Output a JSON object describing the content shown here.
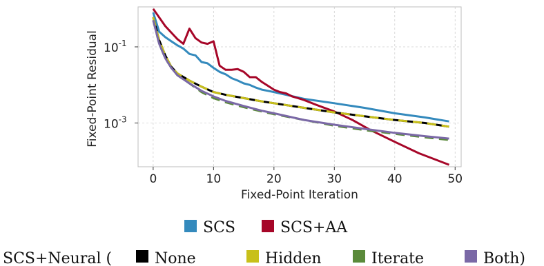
{
  "chart_data": {
    "type": "line",
    "title": "",
    "xlabel": "Fixed-Point Iteration",
    "ylabel": "Fixed-Point Residual",
    "xlim": [
      -2.5,
      51
    ],
    "ylim_log10": [
      -4.15,
      0.05
    ],
    "yscale": "log",
    "xticks": [
      0,
      10,
      20,
      30,
      40,
      50
    ],
    "xtick_labels": [
      "0",
      "10",
      "20",
      "30",
      "40",
      "50"
    ],
    "yticks_log10": [
      -1,
      -3
    ],
    "ytick_labels": [
      {
        "base": "10",
        "exp": "-1"
      },
      {
        "base": "10",
        "exp": "-3"
      }
    ],
    "grid": true,
    "legend_placement": "bottom, outside plot",
    "legend_row1": [
      "SCS",
      "SCS+AA"
    ],
    "legend_row2_prefix": "SCS+Neural (",
    "legend_row2_items": [
      "None",
      "Hidden",
      "Iterate",
      "Both"
    ],
    "legend_row2_suffix": ")",
    "series": [
      {
        "name": "SCS",
        "color": "#348abd",
        "dash": "solid",
        "x": [
          0,
          1,
          2,
          3,
          4,
          5,
          6,
          7,
          8,
          9,
          10,
          11,
          12,
          13,
          14,
          15,
          16,
          17,
          18,
          19,
          20,
          22,
          25,
          30,
          35,
          40,
          45,
          49
        ],
        "y": [
          0.8,
          0.25,
          0.18,
          0.14,
          0.11,
          0.09,
          0.065,
          0.06,
          0.04,
          0.037,
          0.028,
          0.022,
          0.019,
          0.015,
          0.013,
          0.011,
          0.01,
          0.0085,
          0.0075,
          0.007,
          0.0065,
          0.0055,
          0.0043,
          0.0033,
          0.0025,
          0.0018,
          0.0014,
          0.0011
        ]
      },
      {
        "name": "SCS+AA",
        "color": "#a60628",
        "dash": "solid",
        "x": [
          0,
          2,
          4,
          5,
          6,
          7,
          8,
          9,
          10,
          11,
          12,
          13,
          14,
          15,
          16,
          17,
          18,
          19,
          20,
          21,
          22,
          23,
          24,
          25,
          27,
          30,
          33,
          36,
          40,
          44,
          49
        ],
        "y": [
          1.0,
          0.35,
          0.16,
          0.12,
          0.3,
          0.17,
          0.13,
          0.12,
          0.14,
          0.032,
          0.025,
          0.025,
          0.026,
          0.022,
          0.016,
          0.016,
          0.012,
          0.0095,
          0.0075,
          0.0065,
          0.006,
          0.005,
          0.0045,
          0.004,
          0.003,
          0.002,
          0.0012,
          0.00065,
          0.00032,
          0.00016,
          8e-05
        ]
      },
      {
        "name": "None",
        "color": "#000000",
        "dash": "solid",
        "x": [
          0,
          1,
          2,
          3,
          4,
          6,
          8,
          10,
          12,
          15,
          18,
          20,
          25,
          30,
          35,
          40,
          45,
          49
        ],
        "y": [
          0.6,
          0.15,
          0.06,
          0.03,
          0.02,
          0.013,
          0.009,
          0.0065,
          0.0055,
          0.0045,
          0.0037,
          0.0033,
          0.0025,
          0.0019,
          0.0015,
          0.0012,
          0.001,
          0.0008
        ]
      },
      {
        "name": "Hidden",
        "color": "#c8c01a",
        "dash": "dashed",
        "x": [
          0,
          1,
          2,
          3,
          4,
          6,
          8,
          10,
          12,
          15,
          18,
          20,
          25,
          30,
          35,
          40,
          45,
          49
        ],
        "y": [
          0.6,
          0.15,
          0.06,
          0.03,
          0.02,
          0.013,
          0.009,
          0.0065,
          0.0055,
          0.0045,
          0.0037,
          0.0033,
          0.0025,
          0.0019,
          0.0015,
          0.0012,
          0.001,
          0.0008
        ]
      },
      {
        "name": "Iterate",
        "color": "#5a8a3a",
        "dash": "dashed",
        "x": [
          0,
          1,
          2,
          3,
          4,
          6,
          8,
          10,
          12,
          15,
          18,
          20,
          25,
          30,
          35,
          40,
          45,
          49
        ],
        "y": [
          0.5,
          0.12,
          0.05,
          0.028,
          0.018,
          0.011,
          0.0065,
          0.0045,
          0.0035,
          0.0026,
          0.002,
          0.0017,
          0.0012,
          0.00085,
          0.00065,
          0.00052,
          0.00042,
          0.00036
        ]
      },
      {
        "name": "Both",
        "color": "#7a68a6",
        "dash": "solid",
        "x": [
          0,
          1,
          2,
          3,
          4,
          6,
          8,
          10,
          12,
          15,
          18,
          20,
          25,
          30,
          35,
          40,
          45,
          49
        ],
        "y": [
          0.5,
          0.12,
          0.05,
          0.028,
          0.018,
          0.011,
          0.007,
          0.005,
          0.0038,
          0.0028,
          0.0021,
          0.0018,
          0.0012,
          0.0009,
          0.0007,
          0.00055,
          0.00045,
          0.00039
        ]
      }
    ]
  }
}
